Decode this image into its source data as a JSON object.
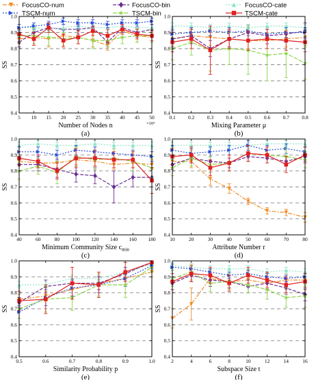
{
  "legend": {
    "entries": [
      {
        "name": "FocusCO-num",
        "color": "#f08a24",
        "marker": "triangle-down",
        "dash": "6,2,2,2"
      },
      {
        "name": "FocusCO-bin",
        "color": "#6a2c91",
        "marker": "diamond",
        "dash": "5,2"
      },
      {
        "name": "FocusCO-cate",
        "color": "#8fe3c8",
        "marker": "triangle-up",
        "dash": "2,2"
      },
      {
        "name": "TSCM-num",
        "color": "#2a4fd8",
        "marker": "triangle-right",
        "dash": "2,2"
      },
      {
        "name": "TSCM-bin",
        "color": "#8bd448",
        "marker": "star",
        "dash": "6,2"
      },
      {
        "name": "TSCM-cate",
        "color": "#e02020",
        "marker": "square",
        "dash": ""
      }
    ]
  },
  "chart_data": [
    {
      "type": "line",
      "panel_label": "(a)",
      "xlabel": "Number of Nodes n",
      "ylabel": "SS",
      "multiplier": "×10³",
      "x": [
        5,
        10,
        15,
        20,
        25,
        30,
        35,
        40,
        45,
        50
      ],
      "xticks": [
        "5",
        "10",
        "15",
        "20",
        "25",
        "30",
        "35",
        "40",
        "45",
        "50"
      ],
      "xlim": [
        5,
        50
      ],
      "ylim": [
        0.4,
        1.0
      ],
      "yticks": [
        "0.4",
        "0.5",
        "0.6",
        "0.7",
        "0.8",
        "0.9",
        "1.0"
      ],
      "grid": "dashed y",
      "series": [
        {
          "name": "FocusCO-num",
          "values": [
            0.86,
            0.87,
            0.86,
            0.88,
            0.87,
            0.85,
            0.82,
            0.91,
            0.88,
            0.87
          ],
          "err": [
            0.03,
            0.04,
            0.05,
            0.04,
            0.04,
            0.04,
            0.03,
            0.04,
            0.04,
            0.03
          ]
        },
        {
          "name": "FocusCO-bin",
          "values": [
            0.84,
            0.9,
            0.93,
            0.92,
            0.92,
            0.93,
            0.84,
            0.93,
            0.9,
            0.92
          ],
          "err": [
            0.03,
            0.03,
            0.03,
            0.03,
            0.03,
            0.03,
            0.03,
            0.03,
            0.03,
            0.03
          ]
        },
        {
          "name": "FocusCO-cate",
          "values": [
            0.93,
            0.93,
            0.92,
            0.93,
            0.94,
            0.93,
            0.93,
            0.94,
            0.93,
            0.93
          ],
          "err": [
            0.02,
            0.02,
            0.02,
            0.02,
            0.02,
            0.02,
            0.02,
            0.02,
            0.02,
            0.02
          ]
        },
        {
          "name": "TSCM-num",
          "values": [
            0.93,
            0.94,
            0.95,
            0.97,
            0.96,
            0.96,
            0.95,
            0.96,
            0.96,
            0.97
          ],
          "err": [
            0.02,
            0.02,
            0.02,
            0.02,
            0.02,
            0.02,
            0.02,
            0.02,
            0.02,
            0.02
          ]
        },
        {
          "name": "TSCM-bin",
          "values": [
            0.88,
            0.88,
            0.87,
            0.86,
            0.87,
            0.85,
            0.85,
            0.87,
            0.88,
            0.88
          ],
          "err": [
            0.04,
            0.05,
            0.05,
            0.04,
            0.04,
            0.05,
            0.04,
            0.04,
            0.04,
            0.04
          ]
        },
        {
          "name": "TSCM-cate",
          "values": [
            0.89,
            0.86,
            0.93,
            0.85,
            0.87,
            0.91,
            0.88,
            0.92,
            0.89,
            0.88
          ],
          "err": [
            0.03,
            0.04,
            0.03,
            0.04,
            0.04,
            0.03,
            0.04,
            0.03,
            0.03,
            0.03
          ]
        }
      ]
    },
    {
      "type": "line",
      "panel_label": "(b)",
      "xlabel": "Mixing Parameter μ",
      "ylabel": "SS",
      "x": [
        0.1,
        0.2,
        0.3,
        0.4,
        0.5,
        0.6,
        0.7,
        0.8
      ],
      "xticks": [
        "0.1",
        "0.2",
        "0.3",
        "0.4",
        "0.5",
        "0.6",
        "0.7",
        "0.8"
      ],
      "xlim": [
        0.1,
        0.8
      ],
      "ylim": [
        0.4,
        1.0
      ],
      "yticks": [
        "0.4",
        "0.5",
        "0.6",
        "0.7",
        "0.8",
        "0.9",
        "1.0"
      ],
      "grid": "dashed y",
      "series": [
        {
          "name": "FocusCO-num",
          "values": [
            0.86,
            0.88,
            0.87,
            0.86,
            0.85,
            0.85,
            0.86,
            0.87
          ],
          "err": [
            0.04,
            0.04,
            0.05,
            0.05,
            0.05,
            0.05,
            0.05,
            0.05
          ]
        },
        {
          "name": "FocusCO-bin",
          "values": [
            0.86,
            0.88,
            0.8,
            0.86,
            0.9,
            0.88,
            0.89,
            0.91
          ],
          "err": [
            0.05,
            0.05,
            0.05,
            0.05,
            0.05,
            0.05,
            0.05,
            0.05
          ]
        },
        {
          "name": "FocusCO-cate",
          "values": [
            0.94,
            0.94,
            0.93,
            0.94,
            0.93,
            0.94,
            0.94,
            0.93
          ],
          "err": [
            0.02,
            0.02,
            0.02,
            0.02,
            0.02,
            0.02,
            0.02,
            0.02
          ]
        },
        {
          "name": "TSCM-num",
          "values": [
            0.89,
            0.9,
            0.91,
            0.9,
            0.91,
            0.89,
            0.9,
            0.9
          ],
          "err": [
            0.03,
            0.03,
            0.03,
            0.03,
            0.03,
            0.03,
            0.03,
            0.03
          ]
        },
        {
          "name": "TSCM-bin",
          "values": [
            0.8,
            0.84,
            0.79,
            0.8,
            0.79,
            0.76,
            0.77,
            0.71
          ],
          "err": [
            0.07,
            0.08,
            0.13,
            0.1,
            0.15,
            0.16,
            0.15,
            0.1
          ]
        },
        {
          "name": "TSCM-cate",
          "values": [
            0.84,
            0.86,
            0.79,
            0.86,
            0.85,
            0.86,
            0.85,
            0.84
          ],
          "err": [
            0.06,
            0.06,
            0.15,
            0.06,
            0.06,
            0.06,
            0.06,
            0.06
          ]
        }
      ]
    },
    {
      "type": "line",
      "panel_label": "(c)",
      "xlabel": "Minimum Community Size c",
      "xlabel_sub": "min",
      "ylabel": "SS",
      "x": [
        40,
        60,
        80,
        100,
        120,
        140,
        160,
        180
      ],
      "xticks": [
        "40",
        "60",
        "80",
        "100",
        "120",
        "140",
        "160",
        "180"
      ],
      "xlim": [
        40,
        180
      ],
      "ylim": [
        0.4,
        1.0
      ],
      "yticks": [
        "0.4",
        "0.5",
        "0.6",
        "0.7",
        "0.8",
        "0.9",
        "1.0"
      ],
      "grid": "dashed y",
      "series": [
        {
          "name": "FocusCO-num",
          "values": [
            0.86,
            0.85,
            0.85,
            0.87,
            0.86,
            0.84,
            0.85,
            0.84
          ],
          "err": [
            0.03,
            0.03,
            0.03,
            0.03,
            0.03,
            0.03,
            0.03,
            0.03
          ]
        },
        {
          "name": "FocusCO-bin",
          "values": [
            0.84,
            0.84,
            0.81,
            0.78,
            0.77,
            0.7,
            0.76,
            0.76
          ],
          "err": [
            0.04,
            0.04,
            0.05,
            0.05,
            0.05,
            0.1,
            0.06,
            0.06
          ]
        },
        {
          "name": "FocusCO-cate",
          "values": [
            0.96,
            0.97,
            0.96,
            0.96,
            0.97,
            0.96,
            0.96,
            0.96
          ],
          "err": [
            0.02,
            0.02,
            0.02,
            0.02,
            0.02,
            0.02,
            0.02,
            0.02
          ]
        },
        {
          "name": "TSCM-num",
          "values": [
            0.92,
            0.92,
            0.9,
            0.93,
            0.92,
            0.91,
            0.9,
            0.89
          ],
          "err": [
            0.03,
            0.03,
            0.03,
            0.03,
            0.03,
            0.03,
            0.03,
            0.03
          ]
        },
        {
          "name": "TSCM-bin",
          "values": [
            0.8,
            0.83,
            0.79,
            0.89,
            0.87,
            0.88,
            0.86,
            0.82
          ],
          "err": [
            0.05,
            0.05,
            0.07,
            0.06,
            0.06,
            0.06,
            0.06,
            0.06
          ]
        },
        {
          "name": "TSCM-cate",
          "values": [
            0.88,
            0.86,
            0.8,
            0.88,
            0.88,
            0.87,
            0.87,
            0.74
          ],
          "err": [
            0.04,
            0.04,
            0.05,
            0.06,
            0.05,
            0.05,
            0.05,
            0.08
          ]
        }
      ]
    },
    {
      "type": "line",
      "panel_label": "(d)",
      "xlabel": "Attribute Number r",
      "ylabel": "SS",
      "x": [
        10,
        20,
        30,
        40,
        50,
        60,
        70,
        80
      ],
      "xticks": [
        "10",
        "20",
        "30",
        "40",
        "50",
        "60",
        "70",
        "80"
      ],
      "xlim": [
        10,
        80
      ],
      "ylim": [
        0.4,
        1.0
      ],
      "yticks": [
        "0.4",
        "0.5",
        "0.6",
        "0.7",
        "0.8",
        "0.9",
        "1.0"
      ],
      "grid": "dashed y",
      "series": [
        {
          "name": "FocusCO-num",
          "values": [
            0.86,
            0.86,
            0.75,
            0.69,
            0.61,
            0.55,
            0.54,
            0.51
          ],
          "err": [
            0.04,
            0.04,
            0.04,
            0.03,
            0.02,
            0.02,
            0.02,
            0.03
          ]
        },
        {
          "name": "FocusCO-bin",
          "values": [
            0.84,
            0.88,
            0.86,
            0.85,
            0.89,
            0.88,
            0.86,
            0.89
          ],
          "err": [
            0.03,
            0.03,
            0.03,
            0.03,
            0.03,
            0.03,
            0.03,
            0.03
          ]
        },
        {
          "name": "FocusCO-cate",
          "values": [
            0.96,
            0.96,
            0.96,
            0.96,
            0.96,
            0.97,
            0.97,
            0.97
          ],
          "err": [
            0.02,
            0.02,
            0.02,
            0.02,
            0.02,
            0.02,
            0.02,
            0.02
          ]
        },
        {
          "name": "TSCM-num",
          "values": [
            0.93,
            0.91,
            0.92,
            0.93,
            0.96,
            0.93,
            0.94,
            0.92
          ],
          "err": [
            0.03,
            0.03,
            0.03,
            0.03,
            0.03,
            0.03,
            0.03,
            0.03
          ]
        },
        {
          "name": "TSCM-bin",
          "values": [
            0.82,
            0.88,
            0.84,
            0.85,
            0.91,
            0.9,
            0.89,
            0.87
          ],
          "err": [
            0.05,
            0.05,
            0.05,
            0.05,
            0.05,
            0.05,
            0.05,
            0.05
          ]
        },
        {
          "name": "TSCM-cate",
          "values": [
            0.89,
            0.9,
            0.82,
            0.85,
            0.91,
            0.9,
            0.84,
            0.9
          ],
          "err": [
            0.05,
            0.05,
            0.05,
            0.05,
            0.05,
            0.05,
            0.05,
            0.05
          ]
        }
      ]
    },
    {
      "type": "line",
      "panel_label": "(e)",
      "xlabel": "Similarity Probability p",
      "ylabel": "SS",
      "x": [
        0.5,
        0.6,
        0.7,
        0.8,
        0.9,
        1.0
      ],
      "xticks": [
        "0.5",
        "0.6",
        "0.7",
        "0.8",
        "0.9",
        "1.0"
      ],
      "xlim": [
        0.5,
        1.0
      ],
      "ylim": [
        0.4,
        1.0
      ],
      "yticks": [
        "0.4",
        "0.5",
        "0.6",
        "0.7",
        "0.8",
        "0.9",
        "1.0"
      ],
      "grid": "dashed y",
      "series": [
        {
          "name": "FocusCO-num",
          "values": [
            0.76,
            0.78,
            0.82,
            0.86,
            0.89,
            0.93
          ],
          "err": [
            0.03,
            0.03,
            0.04,
            0.04,
            0.04,
            0.03
          ]
        },
        {
          "name": "FocusCO-bin",
          "values": [
            0.74,
            0.84,
            0.86,
            0.86,
            0.92,
            0.99
          ],
          "err": [
            0.03,
            0.04,
            0.03,
            0.04,
            0.04,
            0.01
          ]
        },
        {
          "name": "FocusCO-cate",
          "values": [
            0.85,
            0.85,
            0.89,
            0.89,
            0.93,
            0.98
          ],
          "err": [
            0.02,
            0.02,
            0.02,
            0.02,
            0.02,
            0.01
          ]
        },
        {
          "name": "TSCM-num",
          "values": [
            0.68,
            0.77,
            0.83,
            0.85,
            0.89,
            0.97
          ],
          "err": [
            0.04,
            0.05,
            0.05,
            0.05,
            0.05,
            0.02
          ]
        },
        {
          "name": "TSCM-bin",
          "values": [
            0.7,
            0.76,
            0.77,
            0.85,
            0.85,
            0.96
          ],
          "err": [
            0.06,
            0.08,
            0.08,
            0.07,
            0.08,
            0.03
          ]
        },
        {
          "name": "TSCM-cate",
          "values": [
            0.75,
            0.76,
            0.86,
            0.85,
            0.93,
            0.99
          ],
          "err": [
            0.06,
            0.09,
            0.1,
            0.08,
            0.06,
            0.01
          ]
        }
      ]
    },
    {
      "type": "line",
      "panel_label": "(f)",
      "xlabel": "Subspace Size t",
      "ylabel": "SS",
      "x": [
        2,
        4,
        6,
        8,
        10,
        12,
        14,
        16
      ],
      "xticks": [
        "2",
        "4",
        "6",
        "8",
        "10",
        "12",
        "14",
        "16"
      ],
      "xlim": [
        2,
        16
      ],
      "ylim": [
        0.4,
        1.0
      ],
      "yticks": [
        "0.4",
        "0.5",
        "0.6",
        "0.7",
        "0.8",
        "0.9",
        "1.0"
      ],
      "grid": "dashed y",
      "series": [
        {
          "name": "FocusCO-num",
          "values": [
            0.64,
            0.73,
            0.89,
            0.87,
            0.88,
            0.86,
            0.88,
            0.88
          ],
          "err": [
            0.06,
            0.1,
            0.05,
            0.04,
            0.04,
            0.04,
            0.04,
            0.04
          ]
        },
        {
          "name": "FocusCO-bin",
          "values": [
            0.86,
            0.91,
            0.88,
            0.87,
            0.84,
            0.86,
            0.83,
            0.79
          ],
          "err": [
            0.04,
            0.04,
            0.04,
            0.04,
            0.04,
            0.04,
            0.04,
            0.04
          ]
        },
        {
          "name": "FocusCO-cate",
          "values": [
            0.97,
            0.96,
            0.95,
            0.95,
            0.95,
            0.93,
            0.94,
            0.93
          ],
          "err": [
            0.02,
            0.02,
            0.02,
            0.02,
            0.02,
            0.02,
            0.02,
            0.02
          ]
        },
        {
          "name": "TSCM-num",
          "values": [
            0.96,
            0.95,
            0.93,
            0.91,
            0.92,
            0.9,
            0.89,
            0.9
          ],
          "err": [
            0.02,
            0.02,
            0.02,
            0.02,
            0.02,
            0.02,
            0.02,
            0.02
          ]
        },
        {
          "name": "TSCM-bin",
          "values": [
            0.89,
            0.93,
            0.86,
            0.87,
            0.85,
            0.82,
            0.77,
            0.78
          ],
          "err": [
            0.05,
            0.05,
            0.05,
            0.05,
            0.05,
            0.06,
            0.06,
            0.07
          ]
        },
        {
          "name": "TSCM-cate",
          "values": [
            0.87,
            0.92,
            0.91,
            0.86,
            0.91,
            0.88,
            0.85,
            0.87
          ],
          "err": [
            0.05,
            0.05,
            0.05,
            0.05,
            0.05,
            0.05,
            0.05,
            0.05
          ]
        }
      ]
    }
  ]
}
